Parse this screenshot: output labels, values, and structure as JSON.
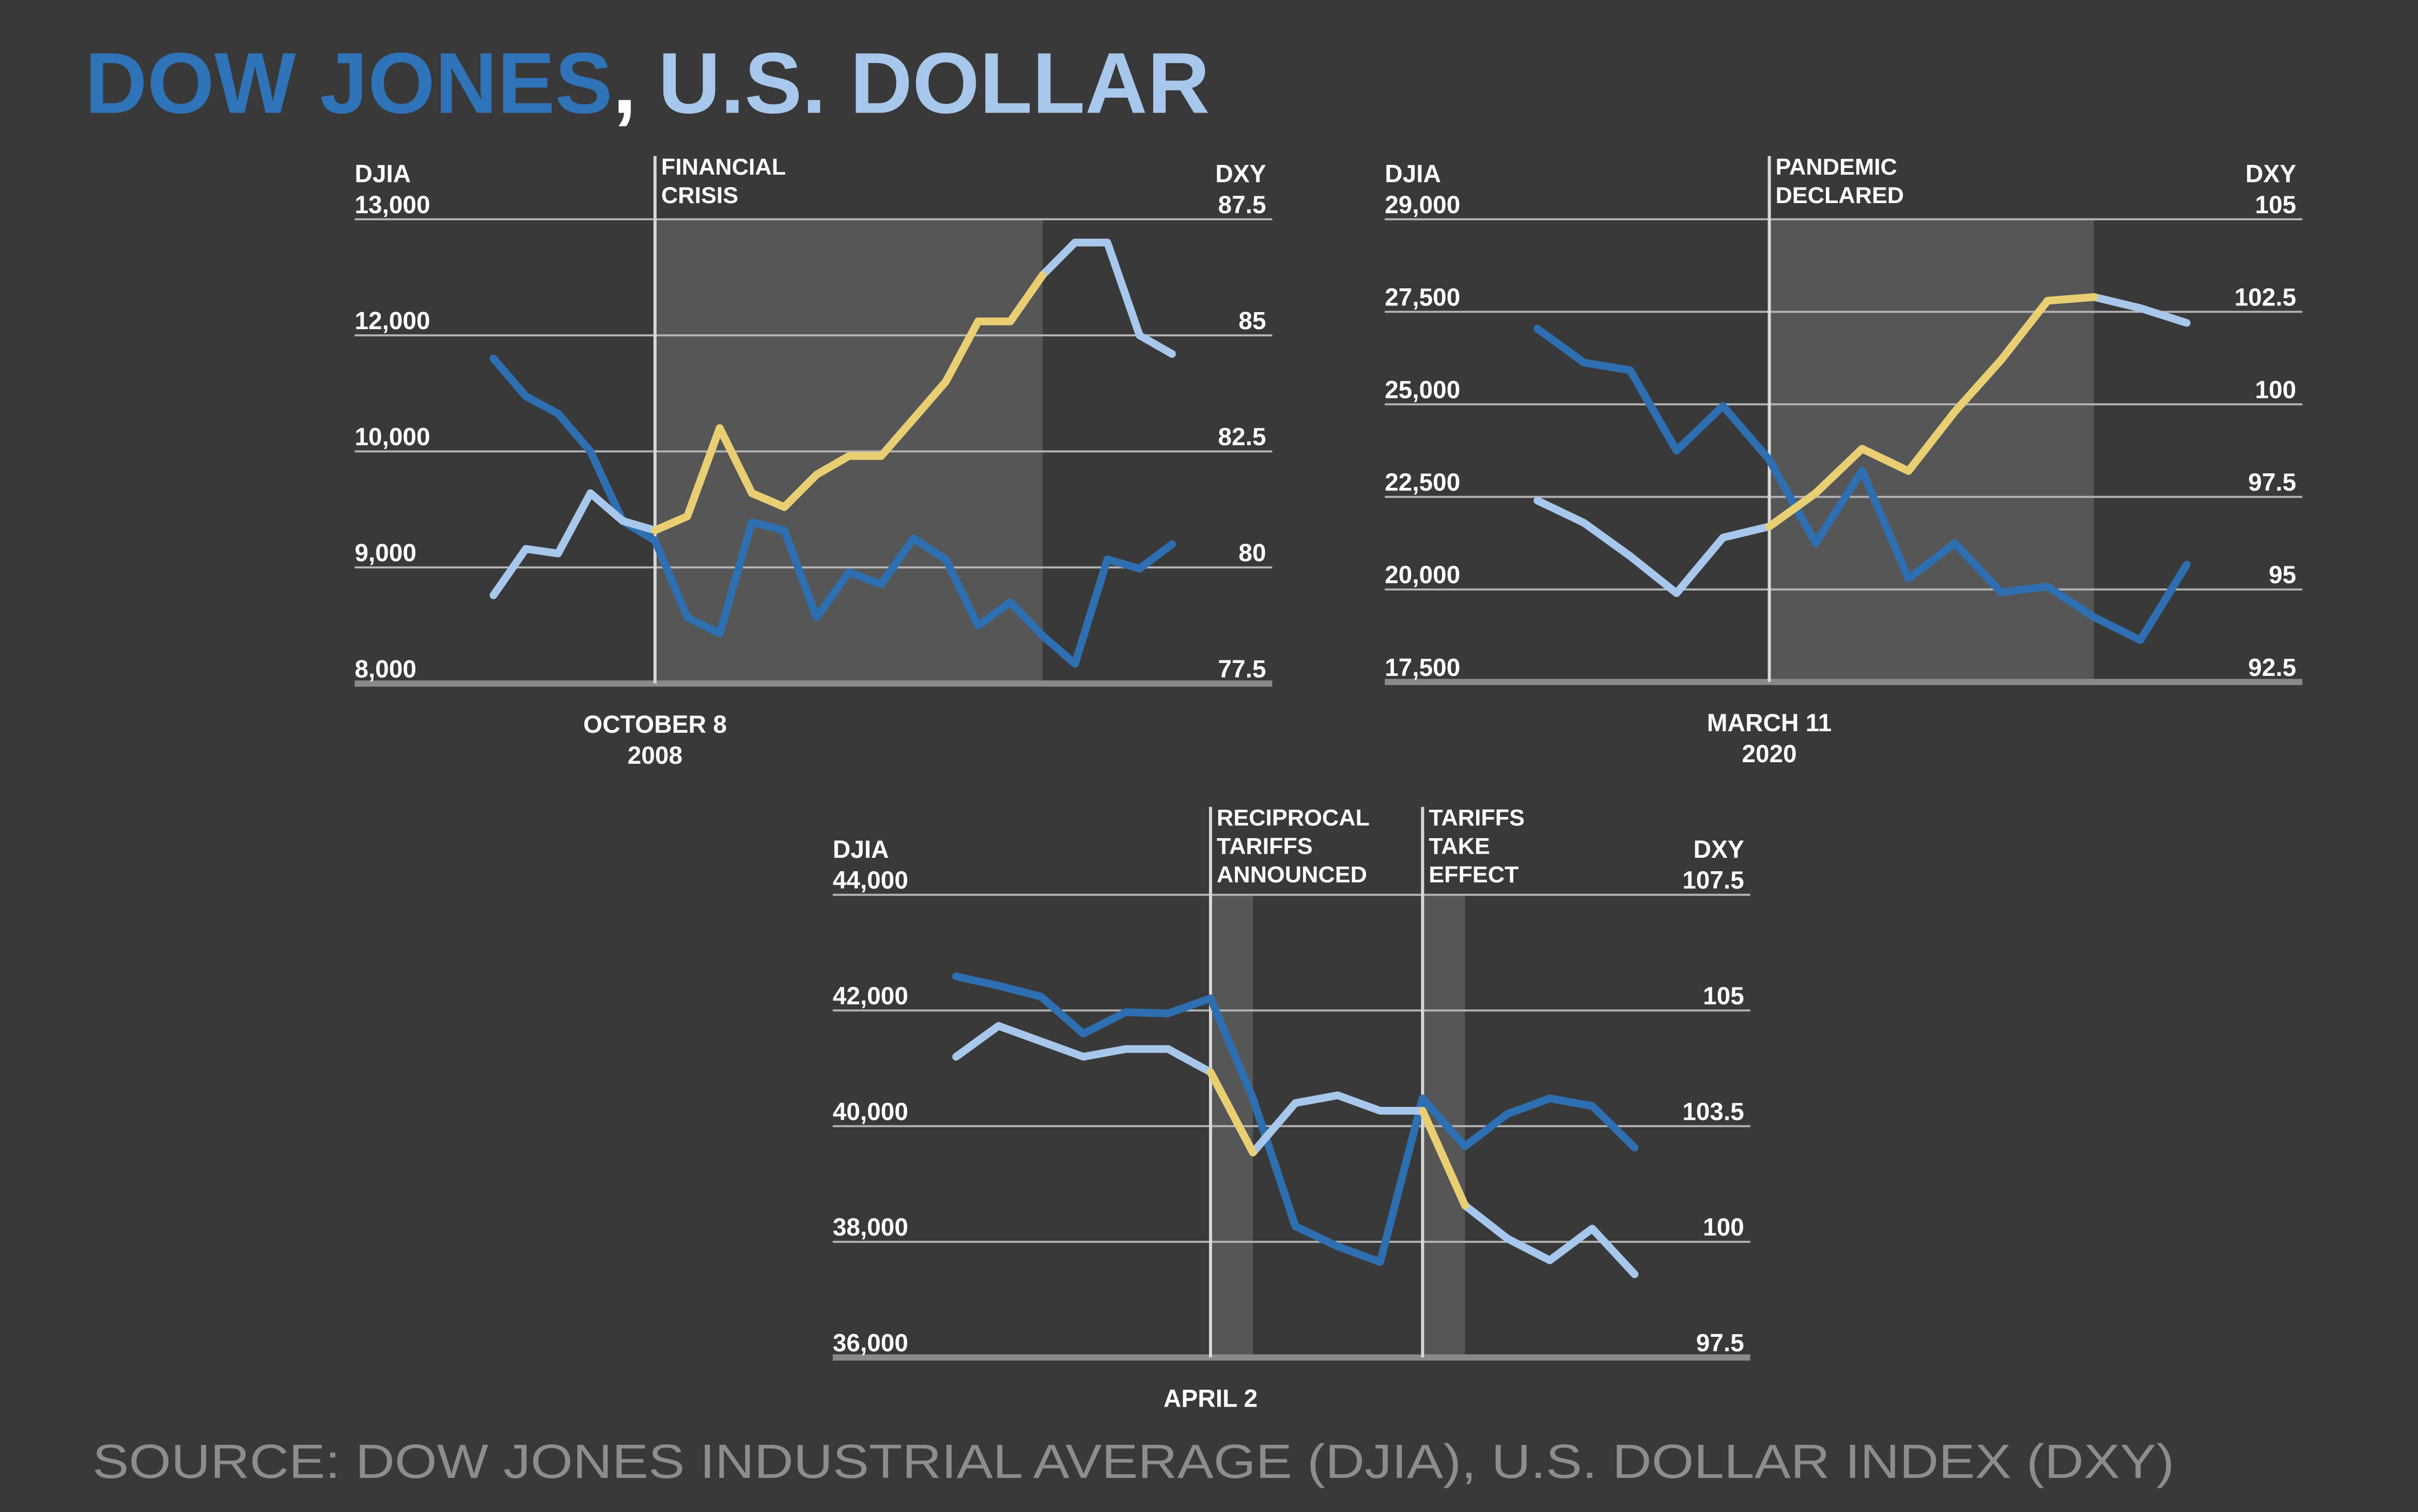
{
  "title": [
    "DOW JONES",
    ",",
    "U.S. DOLLAR"
  ],
  "source": "SOURCE: DOW JONES INDUSTRIAL AVERAGE (DJIA), U.S. DOLLAR INDEX (DXY)",
  "chart_data": [
    {
      "type": "line",
      "categories": [
        null,
        null,
        null,
        null,
        null,
        [
          "OCTOBER 8",
          "2008"
        ],
        null,
        null,
        null,
        null,
        null,
        null,
        null,
        null,
        null,
        null,
        null,
        null,
        null,
        null,
        null,
        null
      ],
      "annotations": [
        {
          "index": 5,
          "lines": [
            "FINANCIAL",
            "CRISIS"
          ]
        }
      ],
      "highlights": [
        {
          "from": 5,
          "to": 17
        }
      ],
      "series": [
        {
          "name": "DJIA",
          "color": "#2e6fb2",
          "axis": "y",
          "values": [
            11600,
            10950,
            10650,
            10000,
            9400,
            9230,
            8570,
            8430,
            9390,
            9320,
            8570,
            8960,
            8855,
            9250,
            9070,
            8500,
            8700,
            8410,
            8170,
            9070,
            8990,
            9200
          ]
        },
        {
          "name": "DXY",
          "color": "#a8c7ec",
          "highlight_color": "#e9cf72",
          "axis": "y2",
          "values": [
            79.4,
            80.4,
            80.3,
            81.6,
            81.0,
            80.8,
            81.1,
            83.0,
            81.6,
            81.3,
            82.0,
            82.4,
            82.4,
            83.2,
            84.0,
            85.3,
            85.3,
            86.3,
            87.0,
            87.0,
            85.0,
            84.6
          ]
        }
      ],
      "ylim": [
        8000,
        13000
      ],
      "yticks": [
        {
          "value": 8000,
          "label": "8,000"
        },
        {
          "value": 9000,
          "label": "9,000"
        },
        {
          "value": 10000,
          "label": "10,000"
        },
        {
          "value": 12000,
          "label": "12,000"
        },
        {
          "value": 13000,
          "label": "13,000"
        }
      ],
      "y2lim": [
        77.5,
        87.5
      ],
      "y2ticks": [
        77.5,
        80,
        82.5,
        85,
        87.5
      ],
      "grid": true
    },
    {
      "type": "line",
      "categories": [
        null,
        null,
        null,
        null,
        null,
        [
          "MARCH 11",
          "2020"
        ],
        null,
        null,
        null,
        null,
        null,
        null,
        null,
        null,
        null
      ],
      "annotations": [
        {
          "index": 5,
          "lines": [
            "PANDEMIC",
            "DECLARED"
          ]
        }
      ],
      "highlights": [
        {
          "from": 5,
          "to": 12
        }
      ],
      "series": [
        {
          "name": "DJIA",
          "color": "#2e6fb2",
          "axis": "y",
          "values": [
            27040,
            26130,
            25920,
            23750,
            24960,
            23500,
            21250,
            23210,
            20290,
            21250,
            19920,
            20080,
            19250,
            18630,
            20670
          ]
        },
        {
          "name": "DXY",
          "color": "#a8c7ec",
          "highlight_color": "#e9cf72",
          "axis": "y2",
          "values": [
            97.4,
            96.8,
            95.9,
            94.9,
            96.4,
            96.7,
            97.6,
            98.8,
            98.2,
            99.8,
            101.2,
            102.8,
            102.9,
            102.6,
            102.2
          ]
        }
      ],
      "ylim": [
        17500,
        29000
      ],
      "yticks": [
        {
          "value": 17500,
          "label": "17,500"
        },
        {
          "value": 20000,
          "label": "20,000"
        },
        {
          "value": 22500,
          "label": "22,500"
        },
        {
          "value": 25000,
          "label": "25,000"
        },
        {
          "value": 27500,
          "label": "27,500"
        },
        {
          "value": 29000,
          "label": "29,000"
        }
      ],
      "y2lim": [
        92.5,
        105
      ],
      "y2ticks": [
        92.5,
        95,
        97.5,
        100,
        102.5,
        105
      ],
      "grid": true
    },
    {
      "type": "line",
      "categories": [
        null,
        null,
        null,
        null,
        null,
        null,
        [
          "APRIL 2"
        ],
        null,
        null,
        null,
        null,
        null,
        null,
        null,
        null,
        null,
        null
      ],
      "annotations": [
        {
          "index": 6,
          "lines": [
            "RECIPROCAL",
            "TARIFFS",
            "ANNOUNCED"
          ]
        },
        {
          "index": 11,
          "lines": [
            "TARIFFS",
            "TAKE",
            "EFFECT"
          ]
        }
      ],
      "highlights": [
        {
          "from": 6,
          "to": 7
        },
        {
          "from": 11,
          "to": 12
        }
      ],
      "series": [
        {
          "name": "DJIA",
          "color": "#2e6fb2",
          "axis": "y",
          "values": [
            42590,
            42430,
            42240,
            41600,
            41970,
            41950,
            42210,
            40480,
            38270,
            37920,
            37650,
            40480,
            39650,
            40210,
            40480,
            40350,
            39630
          ]
        },
        {
          "name": "DXY",
          "color": "#a8c7ec",
          "highlight_color": "#e9cf72",
          "axis": "y2",
          "values": [
            104.4,
            104.8,
            104.6,
            104.4,
            104.5,
            104.5,
            104.2,
            102.7,
            103.8,
            103.9,
            103.7,
            103.7,
            101.1,
            100.1,
            99.6,
            100.4,
            99.3
          ]
        }
      ],
      "ylim": [
        36000,
        44000
      ],
      "yticks": [
        {
          "value": 36000,
          "label": "36,000"
        },
        {
          "value": 38000,
          "label": "38,000"
        },
        {
          "value": 40000,
          "label": "40,000"
        },
        {
          "value": 42000,
          "label": "42,000"
        },
        {
          "value": 44000,
          "label": "44,000"
        }
      ],
      "y2lim": [
        97.5,
        107.5
      ],
      "y2ticks": [
        97.5,
        100,
        103.5,
        105,
        107.5
      ],
      "grid": true
    }
  ]
}
